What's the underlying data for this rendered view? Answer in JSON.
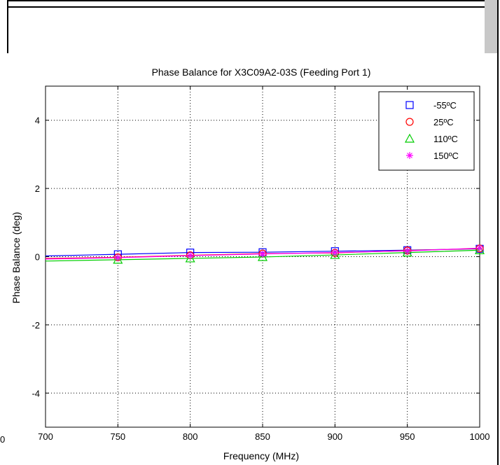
{
  "chart_data": {
    "type": "line",
    "title": "Phase Balance for X3C09A2-03S (Feeding Port 1)",
    "xlabel": "Frequency (MHz)",
    "ylabel": "Phase Balance (deg)",
    "xlim": [
      700,
      1000
    ],
    "ylim": [
      -5,
      5
    ],
    "xticks": [
      "700",
      "750",
      "800",
      "850",
      "900",
      "950",
      "1000"
    ],
    "yticks": [
      "-4",
      "-2",
      "0",
      "2",
      "4"
    ],
    "x": [
      700,
      750,
      800,
      850,
      900,
      950,
      1000
    ],
    "grid": true,
    "legend_position": "top-right",
    "series": [
      {
        "name": "-55ºC",
        "color": "#0000ff",
        "marker": "square",
        "values": [
          0.02,
          0.07,
          0.12,
          0.13,
          0.16,
          0.19,
          0.23
        ]
      },
      {
        "name": "25ºC",
        "color": "#ff0000",
        "marker": "circle",
        "values": [
          -0.05,
          -0.02,
          0.04,
          0.09,
          0.11,
          0.18,
          0.24
        ]
      },
      {
        "name": "110ºC",
        "color": "#00cc00",
        "marker": "triangle",
        "values": [
          -0.13,
          -0.09,
          -0.05,
          -0.01,
          0.05,
          0.12,
          0.19
        ]
      },
      {
        "name": "150ºC",
        "color": "#ff00ff",
        "marker": "star",
        "values": [
          -0.07,
          -0.03,
          0.03,
          0.08,
          0.12,
          0.17,
          0.25
        ]
      }
    ]
  },
  "stray_tick_label": "0"
}
